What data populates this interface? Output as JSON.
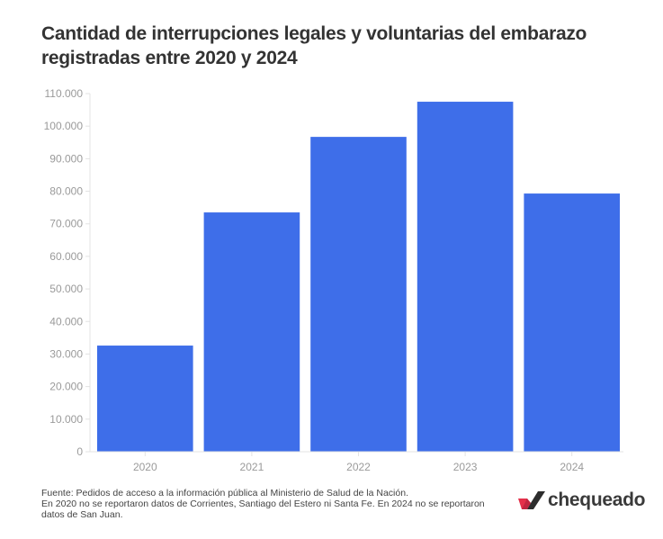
{
  "title": "Cantidad de interrupciones legales y voluntarias del embarazo registradas entre 2020 y 2024",
  "footer": {
    "source": "Fuente: Pedidos de acceso a la información pública al Ministerio de Salud de la Nación.",
    "note": "En 2020 no se reportaron datos de Corrientes, Santiago del Estero ni Santa Fe. En 2024 no se reportaron datos de San Juan."
  },
  "logo": {
    "text": "chequeado",
    "icon": "check-mark-icon"
  },
  "colors": {
    "bar": "#3e6ee9",
    "axis": "#e3e3e3",
    "logo_red": "#e4304a",
    "logo_dark": "#a8203a"
  },
  "chart_data": {
    "type": "bar",
    "title": "Cantidad de interrupciones legales y voluntarias del embarazo registradas entre 2020 y 2024",
    "xlabel": "",
    "ylabel": "",
    "categories": [
      "2020",
      "2021",
      "2022",
      "2023",
      "2024"
    ],
    "values": [
      32600,
      73500,
      96700,
      107500,
      79300
    ],
    "ylim": [
      0,
      110000
    ],
    "yticks": [
      0,
      10000,
      20000,
      30000,
      40000,
      50000,
      60000,
      70000,
      80000,
      90000,
      100000,
      110000
    ],
    "ytick_labels": [
      "0",
      "10.000",
      "20.000",
      "30.000",
      "40.000",
      "50.000",
      "60.000",
      "70.000",
      "80.000",
      "90.000",
      "100.000",
      "110.000"
    ],
    "grid": false,
    "legend": "none"
  }
}
